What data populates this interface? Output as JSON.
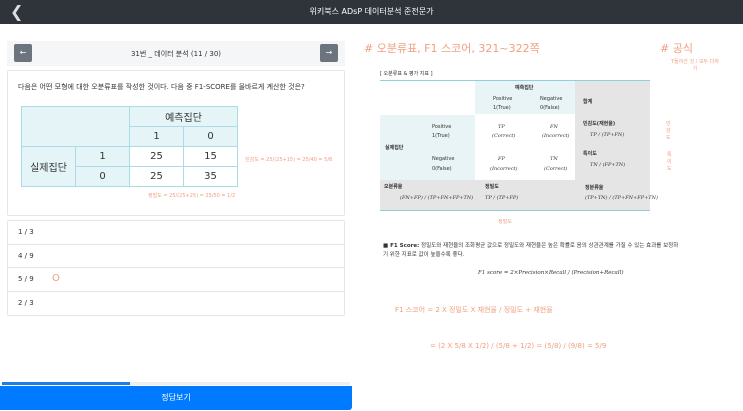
{
  "header": {
    "title": "위키북스 ADsP 데이터분석 준전문가",
    "back_icon": "chevron-left-icon"
  },
  "nav": {
    "label": "31번 _ 데이터 분석 (11 / 30)",
    "prev_icon": "arrow-left-icon",
    "next_icon": "arrow-right-icon"
  },
  "question": {
    "text": "다음은 어떤 모형에 대한 오분류표를 작성한 것이다. 다음 중 F1-SCORE를 올바르게 계산한 것은?",
    "table": {
      "pred_header": "예측집단",
      "pred_cols": [
        "1",
        "0"
      ],
      "actual_header": "실제집단",
      "rows": [
        {
          "label": "1",
          "values": [
            "25",
            "15"
          ]
        },
        {
          "label": "0",
          "values": [
            "25",
            "35"
          ]
        }
      ]
    },
    "annotations": {
      "recall": "민감도 = 25/(25+15) = 25/40 = 5/8",
      "precision": "정밀도 = 25/(25+25) = 25/50 = 1/2"
    }
  },
  "options": [
    "1 / 3",
    "4 / 9",
    "5 / 9",
    "2 / 3"
  ],
  "selected_mark": "O",
  "progress": 0.3667,
  "answer_button": "정답보기",
  "notes": {
    "heading": "# 오분류표, F1 스코어, 321~322쪽",
    "formula_heading": "# 공식",
    "formula_note": "T들어간 것 / 모두 더하기",
    "table_title": "[ 오분류표 & 평가 지표 ]",
    "pred": "예측집단",
    "pos": "Positive",
    "pos1": "1(True)",
    "neg": "Negative",
    "neg0": "0(False)",
    "sum": "합계",
    "actual": "실제집단",
    "tp": "TP",
    "fn": "FN",
    "fp": "FP",
    "tn": "TN",
    "correct": "(Correct)",
    "incorrect": "(Incorrect)",
    "sens": "민감도(재현율)",
    "sens_f": "TP / (TP+FN)",
    "spec": "특이도",
    "spec_f": "TN / (FP+TN)",
    "err": "오분류율",
    "err_f": "(FN+FP) / (TP+FN+FP+TN)",
    "prec": "정밀도",
    "prec_f": "TP / (TP+FP)",
    "acc": "정분류율",
    "acc_f": "(TP+TN) / (TP+FN+FP+TN)",
    "hand_sens": "민감도",
    "hand_spec": "특이도",
    "hand_prec": "정밀도",
    "f1_label": "■ F1 Score:",
    "f1_text": "정밀도와 재현율의 조화평균 값으로 정밀도와 재현율은 높은 확률로 음의 상관관계를 가질 수 있는 효과를 보정하기 위한 지표로 값이 높을수록 좋다.",
    "f1_formula": "F1 score = 2×Precision×Recall / (Precision+Recall)",
    "hand_f1": "F1 스코어 = 2 X 정밀도 X 재현율 / 정밀도 + 재현율",
    "hand_calc": "= (2 X 5/8 X 1/2) / (5/8 + 1/2) = (5/8) / (9/8) = 5/9"
  },
  "colors": {
    "header": "#2f343b",
    "accent": "#007bff",
    "handwriting": "#f0a080",
    "table": "#e4f4f7"
  }
}
